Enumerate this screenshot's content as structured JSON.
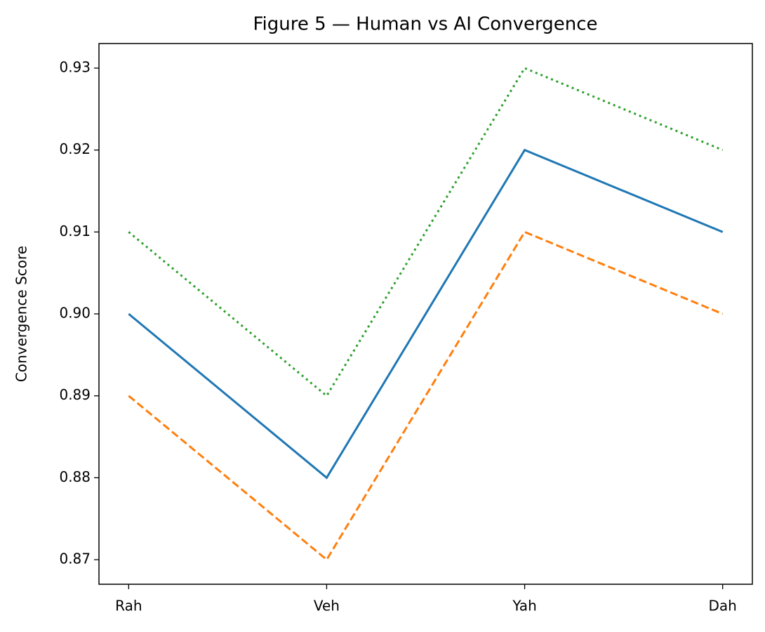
{
  "chart_data": {
    "type": "line",
    "title": "Figure 5 — Human vs AI Convergence",
    "y_label": "Convergence Score",
    "categories": [
      "Rah",
      "Veh",
      "Yah",
      "Dah"
    ],
    "series": [
      {
        "color": "#1f77b4",
        "linestyle": "solid",
        "values": [
          0.9,
          0.88,
          0.92,
          0.91
        ]
      },
      {
        "color": "#ff7f0e",
        "linestyle": "dashed",
        "values": [
          0.89,
          0.87,
          0.91,
          0.9
        ]
      },
      {
        "color": "#2ca02c",
        "linestyle": "dotted",
        "values": [
          0.91,
          0.89,
          0.93,
          0.92
        ]
      }
    ],
    "ylim": [
      0.867,
      0.933
    ],
    "yticks": [
      0.87,
      0.88,
      0.89,
      {
        "value": 0.9,
        "label": "0.90"
      },
      0.91,
      0.92,
      0.93
    ],
    "grid": false
  }
}
